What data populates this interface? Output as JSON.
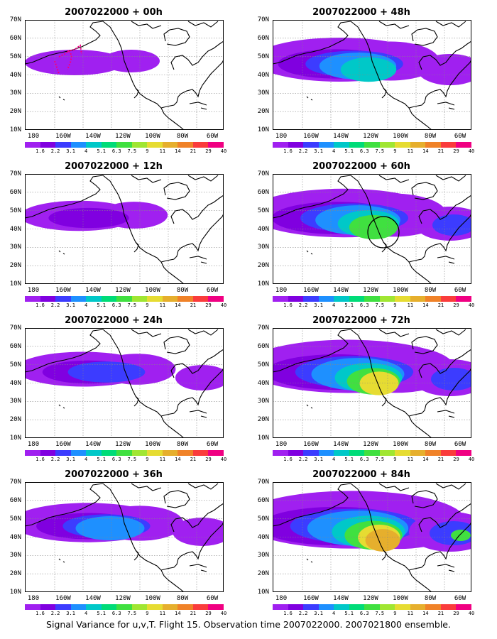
{
  "caption": "Signal Variance for u,v,T. Flight 15. Observation time 2007022000. 2007021800 ensemble.",
  "lat_labels": [
    "70N",
    "60N",
    "50N",
    "40N",
    "30N",
    "20N",
    "10N"
  ],
  "lon_labels": [
    "180",
    "160W",
    "140W",
    "120W",
    "100W",
    "80W",
    "60W"
  ],
  "colorbar": {
    "labels": [
      "1.6",
      "2.2",
      "3.1",
      "4",
      "5.1",
      "6.3",
      "7.5",
      "9",
      "11",
      "14",
      "21",
      "29",
      "40"
    ],
    "colors": [
      "#a020f0",
      "#8000e0",
      "#3c3cff",
      "#1e90ff",
      "#00c8c8",
      "#00dc78",
      "#40e040",
      "#a0e632",
      "#e6dc32",
      "#e6af2d",
      "#f08228",
      "#fa3c3c",
      "#f00082"
    ]
  },
  "panels": [
    {
      "title": "2007022000 + 00h",
      "level": 0
    },
    {
      "title": "2007022000 + 12h",
      "level": 1
    },
    {
      "title": "2007022000 + 24h",
      "level": 2
    },
    {
      "title": "2007022000 + 36h",
      "level": 3
    },
    {
      "title": "2007022000 + 48h",
      "level": 4
    },
    {
      "title": "2007022000 + 60h",
      "level": 5
    },
    {
      "title": "2007022000 + 72h",
      "level": 6
    },
    {
      "title": "2007022000 + 84h",
      "level": 7
    }
  ]
}
